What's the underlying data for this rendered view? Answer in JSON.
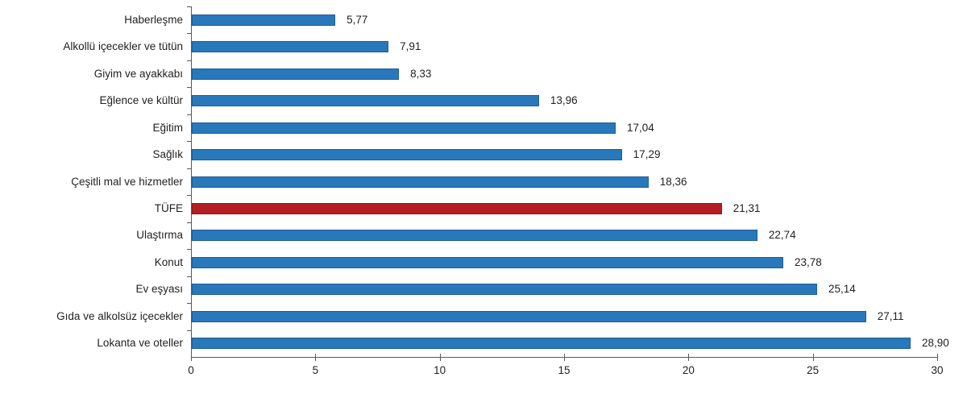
{
  "chart_data": {
    "type": "bar",
    "orientation": "horizontal",
    "title": "",
    "xlabel": "",
    "ylabel": "",
    "xlim": [
      0,
      30
    ],
    "x_ticks": [
      0,
      5,
      10,
      15,
      20,
      25,
      30
    ],
    "x_tick_labels": [
      "0",
      "5",
      "10",
      "15",
      "20",
      "25",
      "30"
    ],
    "grid": false,
    "legend": false,
    "categories": [
      "Haberleşme",
      "Alkollü içecekler ve tütün",
      "Giyim ve ayakkabı",
      "Eğlence ve kültür",
      "Eğitim",
      "Sağlık",
      "Çeşitli mal ve hizmetler",
      "TÜFE",
      "Ulaştırma",
      "Konut",
      "Ev eşyası",
      "Gıda ve alkolsüz içecekler",
      "Lokanta ve oteller"
    ],
    "values": [
      5.77,
      7.91,
      8.33,
      13.96,
      17.04,
      17.29,
      18.36,
      21.31,
      22.74,
      23.78,
      25.14,
      27.11,
      28.9
    ],
    "value_labels": [
      "5,77",
      "7,91",
      "8,33",
      "13,96",
      "17,04",
      "17,29",
      "18,36",
      "21,31",
      "22,74",
      "23,78",
      "25,14",
      "27,11",
      "28,90"
    ],
    "highlight_category": "TÜFE",
    "highlight_index": 7,
    "colors": {
      "bar": "#2878BC",
      "highlight_bar": "#B41E23",
      "axis": "#595959",
      "text": "#1F1F1F"
    }
  }
}
